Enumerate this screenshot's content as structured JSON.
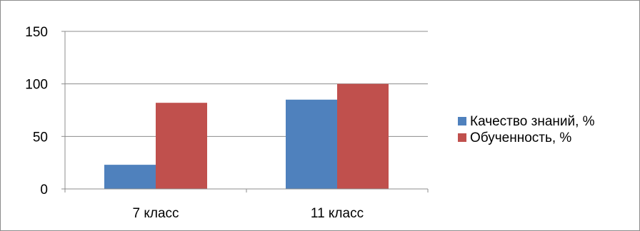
{
  "chart_data": {
    "type": "bar",
    "categories": [
      "7 класс",
      "11 класс"
    ],
    "series": [
      {
        "name": "Качество знаний, %",
        "values": [
          23,
          85
        ],
        "color": "#4f81bd"
      },
      {
        "name": "Обученность, %",
        "values": [
          82,
          100
        ],
        "color": "#c0504d"
      }
    ],
    "ylim": [
      0,
      150
    ],
    "yticks": [
      0,
      50,
      100,
      150
    ],
    "grid": true,
    "legend_position": "right"
  }
}
